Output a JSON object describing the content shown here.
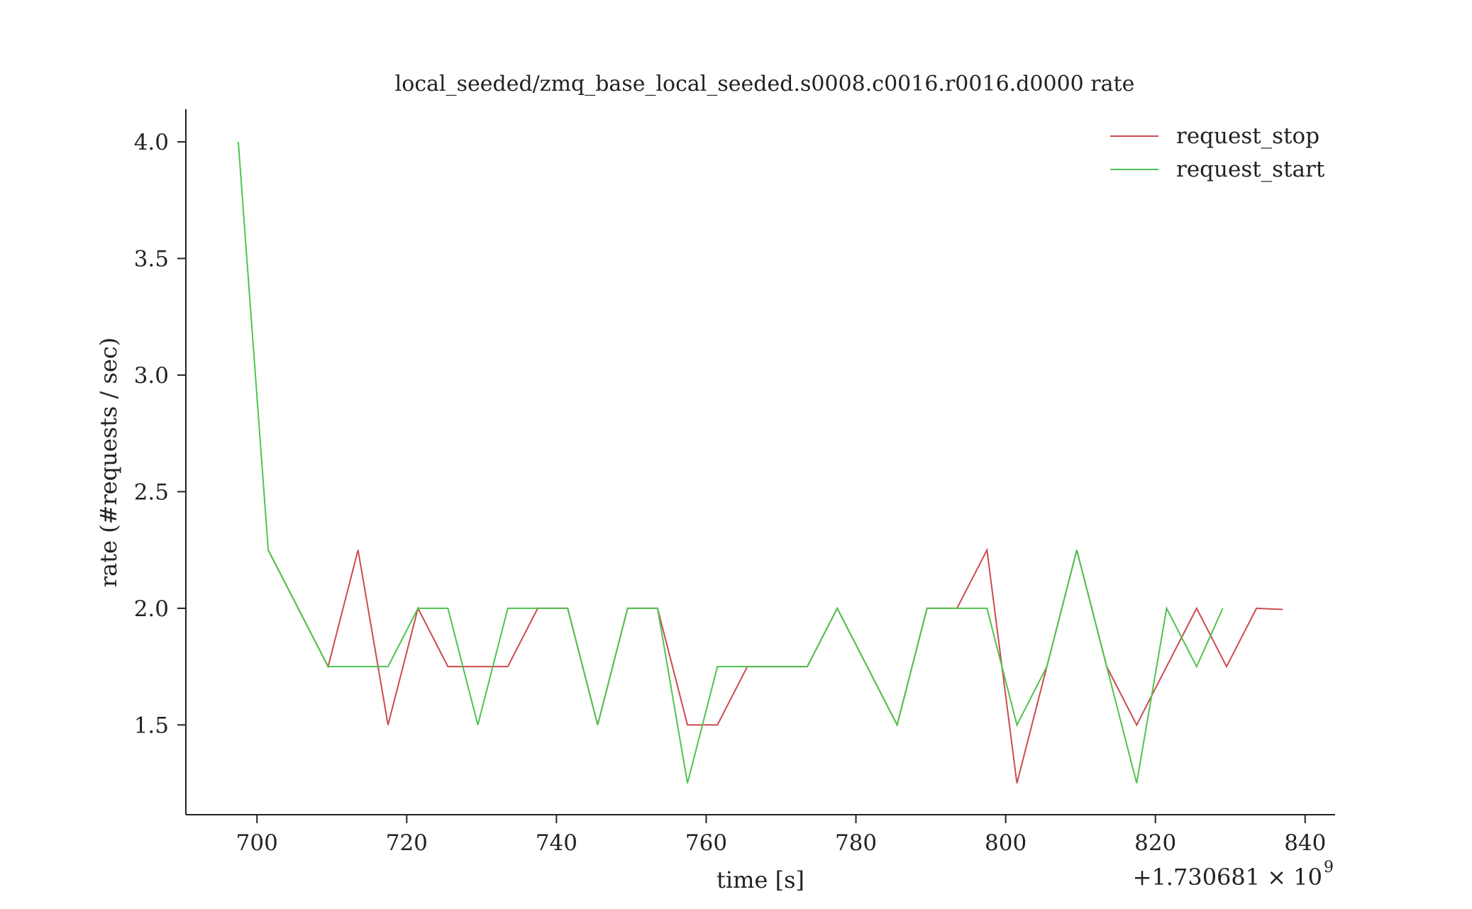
{
  "chart_data": {
    "type": "line",
    "title": "local_seeded/zmq_base_local_seeded.s0008.c0016.r0016.d0000 rate",
    "xlabel": "time [s]",
    "ylabel": "rate (#requests / sec)",
    "x_offset_label": "+1.730681 × 10",
    "x_offset_exponent": "9",
    "xlim": [
      690.5,
      844
    ],
    "ylim": [
      1.115,
      4.14
    ],
    "x_ticks": [
      700,
      720,
      740,
      760,
      780,
      800,
      820,
      840
    ],
    "x_tick_labels": [
      "700",
      "720",
      "740",
      "760",
      "780",
      "800",
      "820",
      "840"
    ],
    "y_ticks": [
      1.5,
      2.0,
      2.5,
      3.0,
      3.5,
      4.0
    ],
    "y_tick_labels": [
      "1.5",
      "2.0",
      "2.5",
      "3.0",
      "3.5",
      "4.0"
    ],
    "grid": false,
    "legend_position": "top-right",
    "series": [
      {
        "name": "request_stop",
        "color": "#cc4b4f",
        "points": [
          [
            701.5,
            2.25
          ],
          [
            709.5,
            1.75
          ],
          [
            713.5,
            2.25
          ],
          [
            717.5,
            1.5
          ],
          [
            721.5,
            2.0
          ],
          [
            725.5,
            1.75
          ],
          [
            729.5,
            1.75
          ],
          [
            733.5,
            1.75
          ],
          [
            737.5,
            2.0
          ],
          [
            741.5,
            2.0
          ],
          [
            745.5,
            1.5
          ],
          [
            749.5,
            2.0
          ],
          [
            753.5,
            2.0
          ],
          [
            757.5,
            1.5
          ],
          [
            761.5,
            1.5
          ],
          [
            765.5,
            1.75
          ],
          [
            769.5,
            1.75
          ],
          [
            773.5,
            1.75
          ],
          [
            777.5,
            2.0
          ],
          [
            781.5,
            1.75
          ],
          [
            785.5,
            1.5
          ],
          [
            789.5,
            2.0
          ],
          [
            793.5,
            2.0
          ],
          [
            797.5,
            2.25
          ],
          [
            801.5,
            1.25
          ],
          [
            805.5,
            1.75
          ],
          [
            809.5,
            2.25
          ],
          [
            813.5,
            1.75
          ],
          [
            817.5,
            1.5
          ],
          [
            821.5,
            1.75
          ],
          [
            825.5,
            2.0
          ],
          [
            829.5,
            1.75
          ],
          [
            833.5,
            2.0
          ],
          [
            837.0,
            1.995
          ]
        ]
      },
      {
        "name": "request_start",
        "color": "#4fc44f",
        "points": [
          [
            697.5,
            4.0
          ],
          [
            701.5,
            2.25
          ],
          [
            709.5,
            1.75
          ],
          [
            713.5,
            1.75
          ],
          [
            717.5,
            1.75
          ],
          [
            721.5,
            2.0
          ],
          [
            725.5,
            2.0
          ],
          [
            729.5,
            1.5
          ],
          [
            733.5,
            2.0
          ],
          [
            737.5,
            2.0
          ],
          [
            741.5,
            2.0
          ],
          [
            745.5,
            1.5
          ],
          [
            749.5,
            2.0
          ],
          [
            753.5,
            2.0
          ],
          [
            757.5,
            1.25
          ],
          [
            761.5,
            1.75
          ],
          [
            765.5,
            1.75
          ],
          [
            769.5,
            1.75
          ],
          [
            773.5,
            1.75
          ],
          [
            777.5,
            2.0
          ],
          [
            781.5,
            1.75
          ],
          [
            785.5,
            1.5
          ],
          [
            789.5,
            2.0
          ],
          [
            793.5,
            2.0
          ],
          [
            797.5,
            2.0
          ],
          [
            801.5,
            1.5
          ],
          [
            805.5,
            1.75
          ],
          [
            809.5,
            2.25
          ],
          [
            813.5,
            1.75
          ],
          [
            817.5,
            1.25
          ],
          [
            821.5,
            2.0
          ],
          [
            825.5,
            1.75
          ],
          [
            829.0,
            2.0
          ]
        ]
      }
    ]
  }
}
